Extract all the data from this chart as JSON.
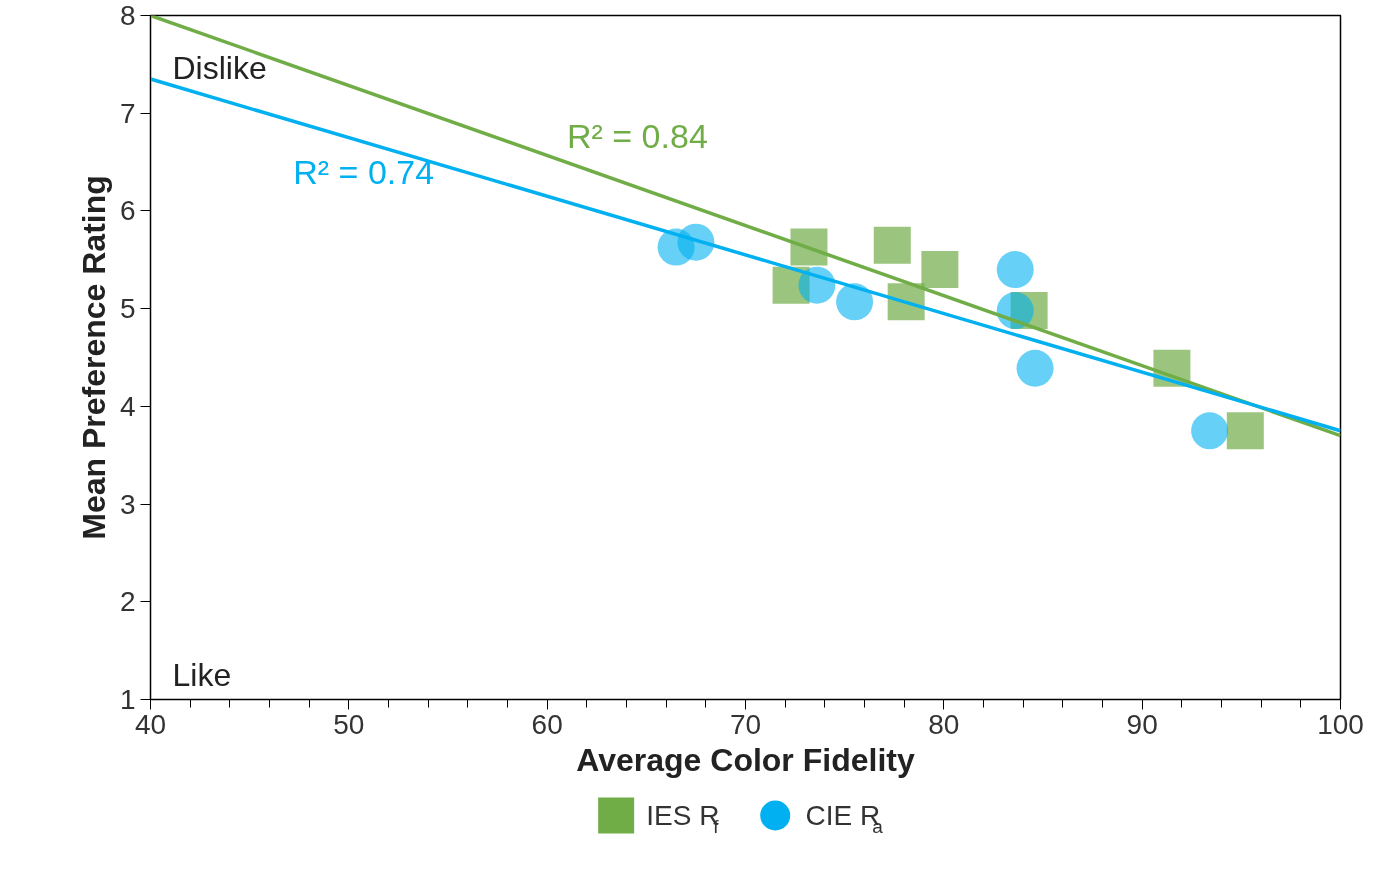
{
  "chart_data": {
    "type": "scatter",
    "xlabel": "Average Color Fidelity",
    "ylabel": "Mean Preference Rating",
    "xlim": [
      40,
      100
    ],
    "xticks": [
      40,
      50,
      60,
      70,
      80,
      90,
      100
    ],
    "ylim": [
      1,
      8
    ],
    "yticks": [
      1,
      2,
      3,
      4,
      5,
      6,
      7,
      8
    ],
    "grid": false,
    "legend": "bottom",
    "annotations": [
      "Dislike",
      "Like"
    ],
    "series": [
      {
        "name": "IES R$_{f}$",
        "marker": "square",
        "color": "#70ad47",
        "x": [
          72.3,
          73.2,
          77.4,
          78.1,
          79.8,
          84.3,
          91.5,
          95.2
        ],
        "values": [
          5.24,
          5.63,
          5.65,
          5.07,
          5.4,
          4.98,
          4.39,
          3.75
        ]
      },
      {
        "name": "CIE R$_{a}$",
        "marker": "circle",
        "color": "#00b0f0",
        "x": [
          66.5,
          67.5,
          73.6,
          75.5,
          83.6,
          83.6,
          84.6,
          93.4
        ],
        "values": [
          5.63,
          5.68,
          5.24,
          5.07,
          5.4,
          4.98,
          4.39,
          3.75
        ]
      },
      {
        "name": "R² = 0.84",
        "type": "line",
        "color": "#70ad47",
        "x": [
          40,
          100
        ],
        "values": [
          8.0,
          3.7
        ]
      },
      {
        "name": "R² = 0.74",
        "type": "line",
        "color": "#00b0f0",
        "x": [
          40,
          100
        ],
        "values": [
          7.35,
          3.75
        ]
      }
    ]
  }
}
